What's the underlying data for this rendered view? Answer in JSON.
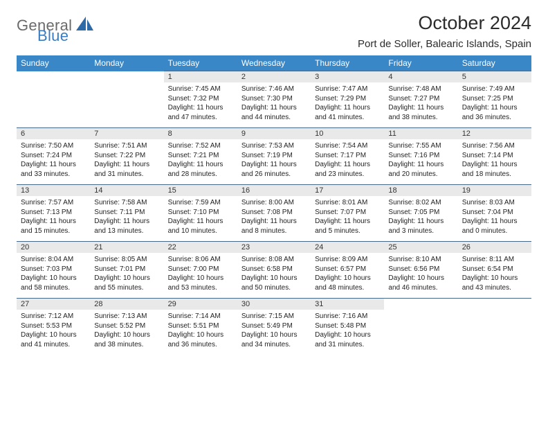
{
  "logo": {
    "text1": "General",
    "text2": "Blue",
    "shape_color": "#2f6aa8"
  },
  "title": "October 2024",
  "location": "Port de Soller, Balearic Islands, Spain",
  "colors": {
    "header_bg": "#3a87c8",
    "header_text": "#ffffff",
    "daynum_bg": "#e9e9e9",
    "cell_border": "#45678a",
    "body_text": "#222222",
    "title_text": "#2b2b2b",
    "logo_gray": "#6a6a6a",
    "logo_blue": "#3a7cc0"
  },
  "day_headers": [
    "Sunday",
    "Monday",
    "Tuesday",
    "Wednesday",
    "Thursday",
    "Friday",
    "Saturday"
  ],
  "weeks": [
    [
      null,
      null,
      {
        "n": "1",
        "sunrise": "7:45 AM",
        "sunset": "7:32 PM",
        "daylight": "11 hours and 47 minutes."
      },
      {
        "n": "2",
        "sunrise": "7:46 AM",
        "sunset": "7:30 PM",
        "daylight": "11 hours and 44 minutes."
      },
      {
        "n": "3",
        "sunrise": "7:47 AM",
        "sunset": "7:29 PM",
        "daylight": "11 hours and 41 minutes."
      },
      {
        "n": "4",
        "sunrise": "7:48 AM",
        "sunset": "7:27 PM",
        "daylight": "11 hours and 38 minutes."
      },
      {
        "n": "5",
        "sunrise": "7:49 AM",
        "sunset": "7:25 PM",
        "daylight": "11 hours and 36 minutes."
      }
    ],
    [
      {
        "n": "6",
        "sunrise": "7:50 AM",
        "sunset": "7:24 PM",
        "daylight": "11 hours and 33 minutes."
      },
      {
        "n": "7",
        "sunrise": "7:51 AM",
        "sunset": "7:22 PM",
        "daylight": "11 hours and 31 minutes."
      },
      {
        "n": "8",
        "sunrise": "7:52 AM",
        "sunset": "7:21 PM",
        "daylight": "11 hours and 28 minutes."
      },
      {
        "n": "9",
        "sunrise": "7:53 AM",
        "sunset": "7:19 PM",
        "daylight": "11 hours and 26 minutes."
      },
      {
        "n": "10",
        "sunrise": "7:54 AM",
        "sunset": "7:17 PM",
        "daylight": "11 hours and 23 minutes."
      },
      {
        "n": "11",
        "sunrise": "7:55 AM",
        "sunset": "7:16 PM",
        "daylight": "11 hours and 20 minutes."
      },
      {
        "n": "12",
        "sunrise": "7:56 AM",
        "sunset": "7:14 PM",
        "daylight": "11 hours and 18 minutes."
      }
    ],
    [
      {
        "n": "13",
        "sunrise": "7:57 AM",
        "sunset": "7:13 PM",
        "daylight": "11 hours and 15 minutes."
      },
      {
        "n": "14",
        "sunrise": "7:58 AM",
        "sunset": "7:11 PM",
        "daylight": "11 hours and 13 minutes."
      },
      {
        "n": "15",
        "sunrise": "7:59 AM",
        "sunset": "7:10 PM",
        "daylight": "11 hours and 10 minutes."
      },
      {
        "n": "16",
        "sunrise": "8:00 AM",
        "sunset": "7:08 PM",
        "daylight": "11 hours and 8 minutes."
      },
      {
        "n": "17",
        "sunrise": "8:01 AM",
        "sunset": "7:07 PM",
        "daylight": "11 hours and 5 minutes."
      },
      {
        "n": "18",
        "sunrise": "8:02 AM",
        "sunset": "7:05 PM",
        "daylight": "11 hours and 3 minutes."
      },
      {
        "n": "19",
        "sunrise": "8:03 AM",
        "sunset": "7:04 PM",
        "daylight": "11 hours and 0 minutes."
      }
    ],
    [
      {
        "n": "20",
        "sunrise": "8:04 AM",
        "sunset": "7:03 PM",
        "daylight": "10 hours and 58 minutes."
      },
      {
        "n": "21",
        "sunrise": "8:05 AM",
        "sunset": "7:01 PM",
        "daylight": "10 hours and 55 minutes."
      },
      {
        "n": "22",
        "sunrise": "8:06 AM",
        "sunset": "7:00 PM",
        "daylight": "10 hours and 53 minutes."
      },
      {
        "n": "23",
        "sunrise": "8:08 AM",
        "sunset": "6:58 PM",
        "daylight": "10 hours and 50 minutes."
      },
      {
        "n": "24",
        "sunrise": "8:09 AM",
        "sunset": "6:57 PM",
        "daylight": "10 hours and 48 minutes."
      },
      {
        "n": "25",
        "sunrise": "8:10 AM",
        "sunset": "6:56 PM",
        "daylight": "10 hours and 46 minutes."
      },
      {
        "n": "26",
        "sunrise": "8:11 AM",
        "sunset": "6:54 PM",
        "daylight": "10 hours and 43 minutes."
      }
    ],
    [
      {
        "n": "27",
        "sunrise": "7:12 AM",
        "sunset": "5:53 PM",
        "daylight": "10 hours and 41 minutes."
      },
      {
        "n": "28",
        "sunrise": "7:13 AM",
        "sunset": "5:52 PM",
        "daylight": "10 hours and 38 minutes."
      },
      {
        "n": "29",
        "sunrise": "7:14 AM",
        "sunset": "5:51 PM",
        "daylight": "10 hours and 36 minutes."
      },
      {
        "n": "30",
        "sunrise": "7:15 AM",
        "sunset": "5:49 PM",
        "daylight": "10 hours and 34 minutes."
      },
      {
        "n": "31",
        "sunrise": "7:16 AM",
        "sunset": "5:48 PM",
        "daylight": "10 hours and 31 minutes."
      },
      null,
      null
    ]
  ],
  "labels": {
    "sunrise": "Sunrise:",
    "sunset": "Sunset:",
    "daylight": "Daylight:"
  }
}
